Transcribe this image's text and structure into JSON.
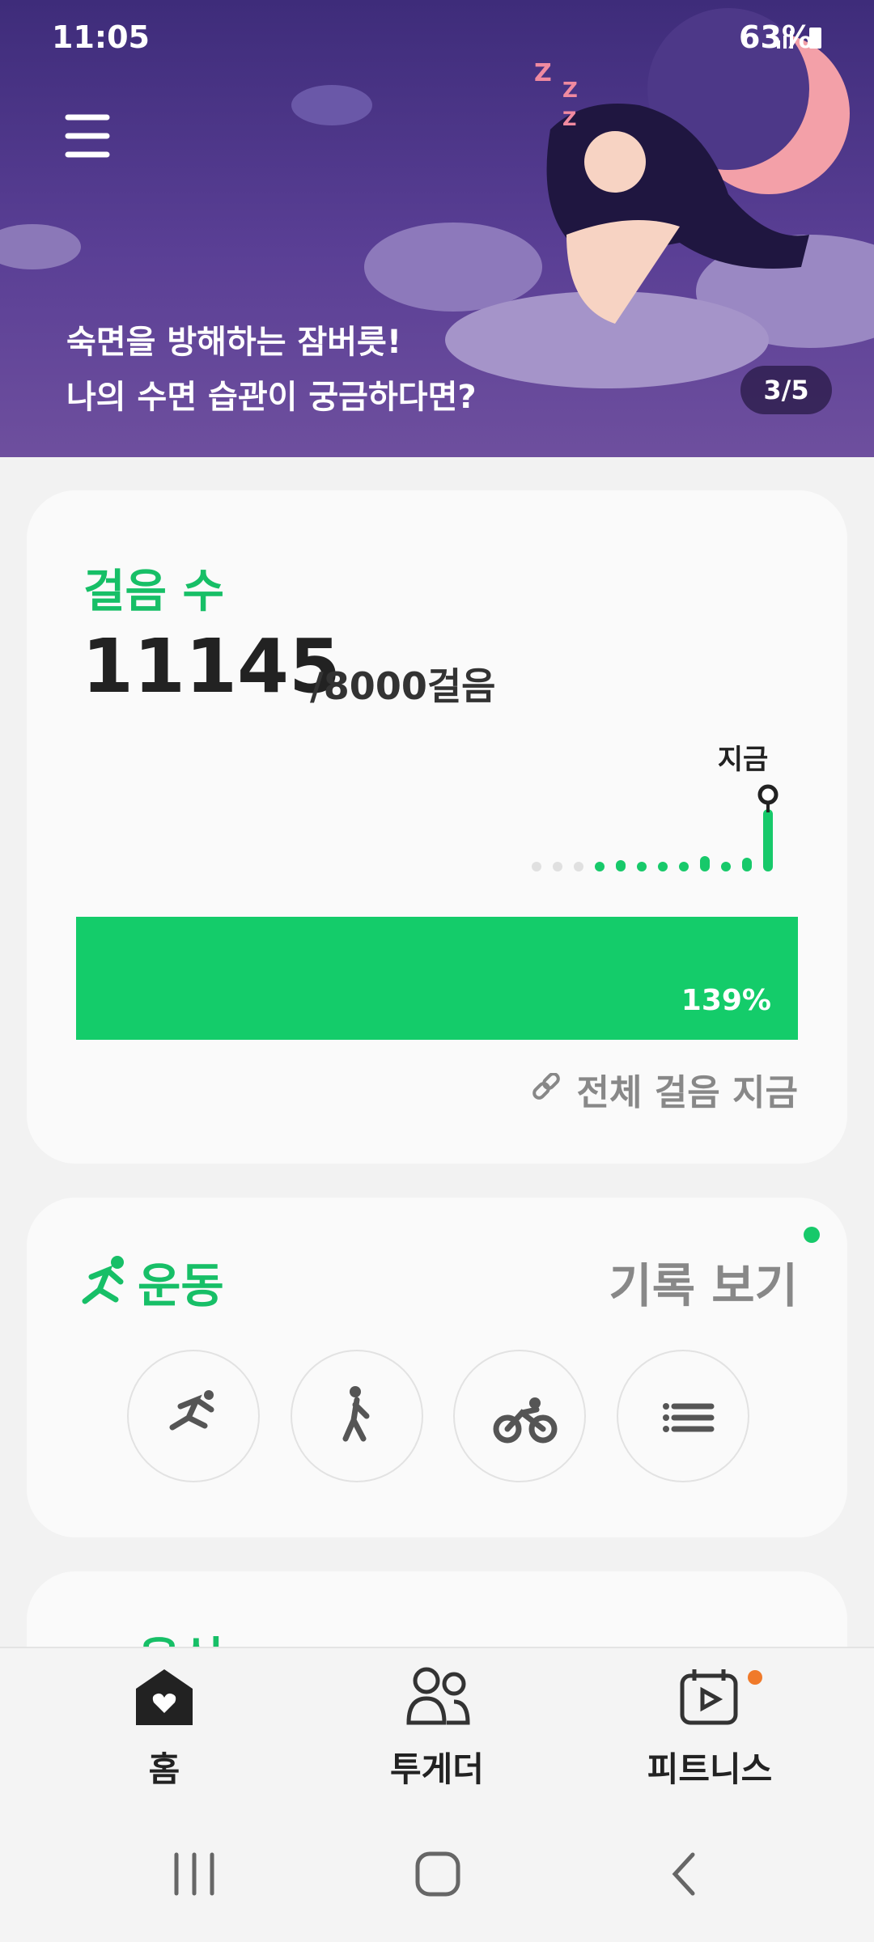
{
  "status_bar": {
    "time": "11:05",
    "battery": "63%"
  },
  "banner": {
    "lines": [
      "숙면을 방해하는 잠버릇!",
      "나의 수면 습관이 궁금하다면?"
    ],
    "page": "3/5"
  },
  "steps_card": {
    "title": "걸음 수",
    "count": "11145",
    "goal": "/8000걸음",
    "now_label": "지금",
    "progress": "139%",
    "link": "전체 걸음 지금"
  },
  "exercise_card": {
    "title": "운동",
    "history": "기록 보기"
  },
  "food_card": {
    "title": "음식"
  },
  "bottom_nav": {
    "items": [
      "홈",
      "투게더",
      "피트니스"
    ]
  }
}
